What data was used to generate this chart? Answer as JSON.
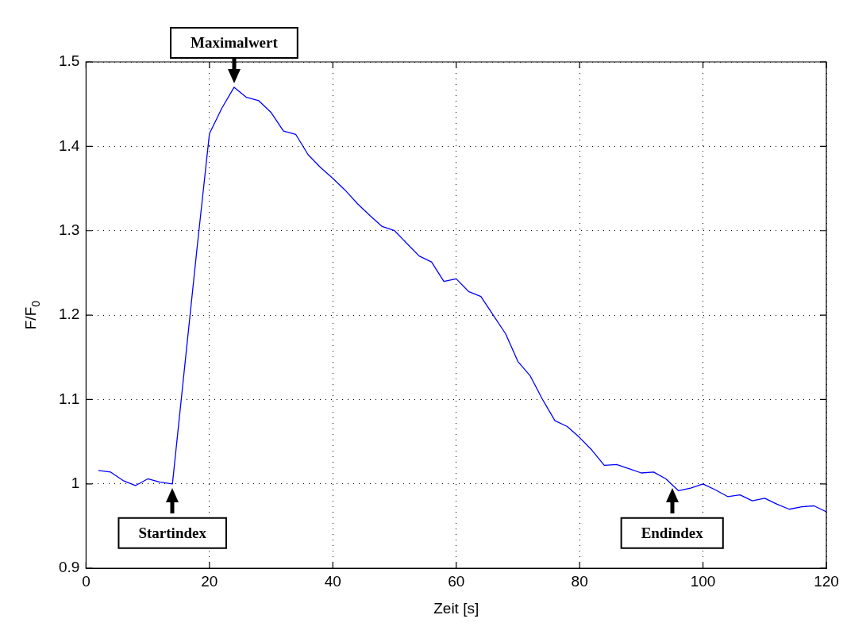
{
  "chart_data": {
    "type": "line",
    "xlabel": "Zeit [s]",
    "ylabel": "F/F$_{0}$",
    "x": [
      2,
      4,
      6,
      8,
      10,
      12,
      14,
      16,
      18,
      20,
      22,
      24,
      26,
      28,
      30,
      32,
      34,
      36,
      38,
      40,
      42,
      44,
      46,
      48,
      50,
      52,
      54,
      56,
      58,
      60,
      62,
      64,
      66,
      68,
      70,
      72,
      74,
      76,
      78,
      80,
      82,
      84,
      86,
      88,
      90,
      92,
      94,
      96,
      98,
      100,
      102,
      104,
      106,
      108,
      110,
      112,
      114,
      116,
      118,
      120
    ],
    "series": [
      {
        "color": "#0000ff",
        "values": [
          1.016,
          1.014,
          1.004,
          0.998,
          1.006,
          1.002,
          1.0,
          1.14,
          1.28,
          1.415,
          1.445,
          1.47,
          1.458,
          1.454,
          1.44,
          1.418,
          1.414,
          1.39,
          1.375,
          1.362,
          1.348,
          1.332,
          1.318,
          1.305,
          1.3,
          1.285,
          1.27,
          1.263,
          1.24,
          1.243,
          1.228,
          1.222,
          1.2,
          1.178,
          1.145,
          1.128,
          1.1,
          1.075,
          1.068,
          1.055,
          1.04,
          1.022,
          1.023,
          1.018,
          1.013,
          1.014,
          1.006,
          0.992,
          0.995,
          1.0,
          0.993,
          0.985,
          0.987,
          0.98,
          0.983,
          0.976,
          0.97,
          0.973,
          0.974,
          0.967
        ]
      }
    ],
    "xlim": [
      0,
      120
    ],
    "xticks": [
      0,
      20,
      40,
      60,
      80,
      100,
      120
    ],
    "ylim": [
      0.9,
      1.5
    ],
    "yticks": [
      0.9,
      1,
      1.1,
      1.2,
      1.3,
      1.4,
      1.5
    ],
    "grid": true,
    "legend": false,
    "marker": "none",
    "line_style": "solid",
    "annotations": [
      {
        "text": "Maximalwert",
        "x": 24,
        "y": 1.47
      },
      {
        "text": "Startindex",
        "x": 14,
        "y": 1.0
      },
      {
        "text": "Endindex",
        "x": 95,
        "y": 1.0
      }
    ]
  }
}
